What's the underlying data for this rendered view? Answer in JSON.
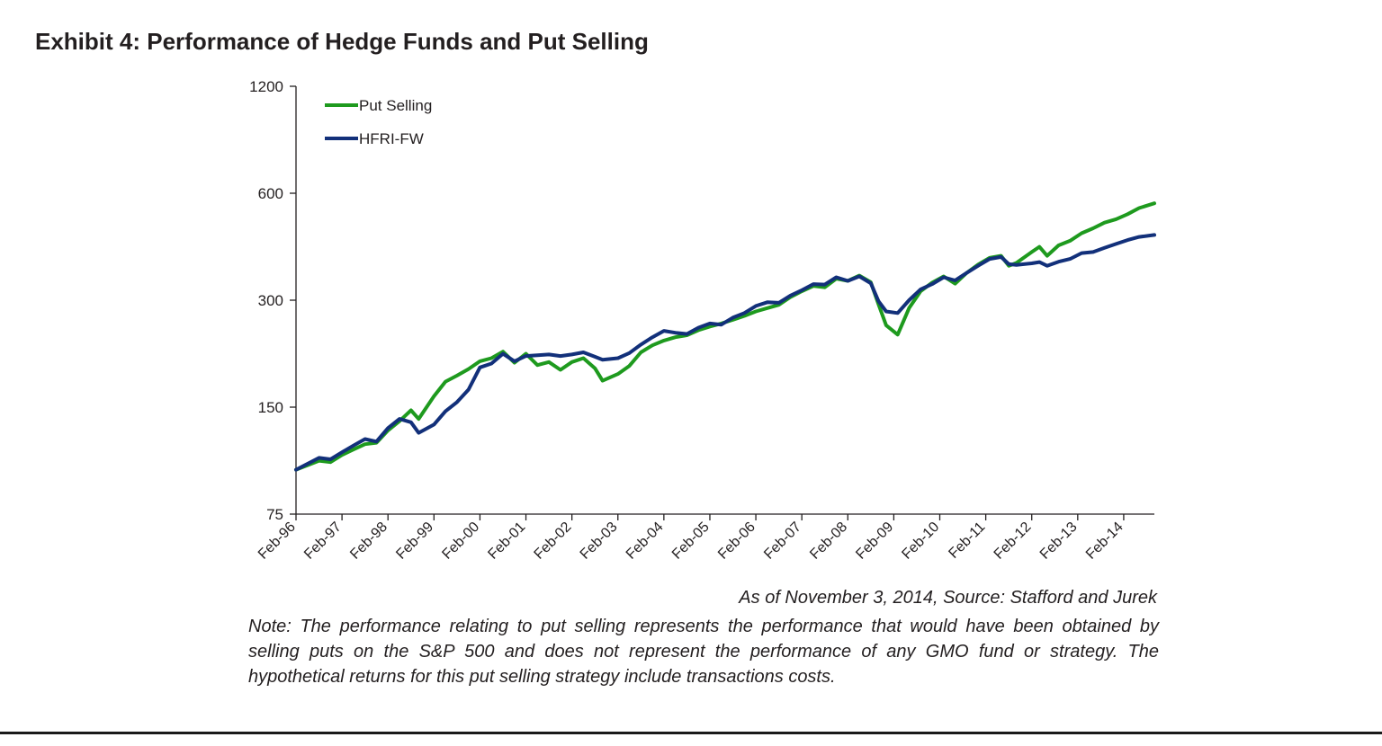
{
  "title": "Exhibit 4: Performance of Hedge Funds and Put Selling",
  "source": "As of November 3, 2014, Source: Stafford and Jurek",
  "note": "Note: The performance relating to put selling represents the performance that would have been obtained by selling puts on the S&P 500 and does not represent the performance of any GMO fund or strategy. The hypothetical returns for this put selling strategy include transactions costs.",
  "chart_data": {
    "type": "line",
    "title": "Exhibit 4: Performance of Hedge Funds and Put Selling",
    "xlabel": "",
    "ylabel": "",
    "y_scale": "log",
    "ylim": [
      75,
      1200
    ],
    "yticks": [
      75,
      150,
      300,
      600,
      1200
    ],
    "xlim": [
      "1996-02",
      "2014-10"
    ],
    "xticks": [
      "Feb-96",
      "Feb-97",
      "Feb-98",
      "Feb-99",
      "Feb-00",
      "Feb-01",
      "Feb-02",
      "Feb-03",
      "Feb-04",
      "Feb-05",
      "Feb-06",
      "Feb-07",
      "Feb-08",
      "Feb-09",
      "Feb-10",
      "Feb-11",
      "Feb-12",
      "Feb-13",
      "Feb-14"
    ],
    "grid": false,
    "legend_position": "top-left",
    "series": [
      {
        "name": "Put Selling",
        "color": "#1e9a1e",
        "points": [
          [
            "1996-02",
            100
          ],
          [
            "1996-08",
            106
          ],
          [
            "1996-11",
            105
          ],
          [
            "1997-02",
            110
          ],
          [
            "1997-05",
            114
          ],
          [
            "1997-08",
            118
          ],
          [
            "1997-11",
            119
          ],
          [
            "1998-02",
            129
          ],
          [
            "1998-05",
            137
          ],
          [
            "1998-08",
            147
          ],
          [
            "1998-10",
            139
          ],
          [
            "1999-02",
            161
          ],
          [
            "1999-05",
            177
          ],
          [
            "1999-08",
            184
          ],
          [
            "1999-11",
            192
          ],
          [
            "2000-02",
            202
          ],
          [
            "2000-05",
            206
          ],
          [
            "2000-08",
            215
          ],
          [
            "2000-11",
            200
          ],
          [
            "2001-02",
            212
          ],
          [
            "2001-05",
            197
          ],
          [
            "2001-08",
            201
          ],
          [
            "2001-11",
            191
          ],
          [
            "2002-02",
            201
          ],
          [
            "2002-05",
            206
          ],
          [
            "2002-08",
            193
          ],
          [
            "2002-10",
            178
          ],
          [
            "2003-02",
            186
          ],
          [
            "2003-05",
            196
          ],
          [
            "2003-08",
            214
          ],
          [
            "2003-11",
            224
          ],
          [
            "2004-02",
            231
          ],
          [
            "2004-05",
            236
          ],
          [
            "2004-08",
            239
          ],
          [
            "2004-11",
            247
          ],
          [
            "2005-02",
            253
          ],
          [
            "2005-05",
            258
          ],
          [
            "2005-08",
            264
          ],
          [
            "2005-11",
            271
          ],
          [
            "2006-02",
            279
          ],
          [
            "2006-05",
            285
          ],
          [
            "2006-08",
            291
          ],
          [
            "2006-11",
            306
          ],
          [
            "2007-02",
            318
          ],
          [
            "2007-05",
            329
          ],
          [
            "2007-08",
            326
          ],
          [
            "2007-11",
            345
          ],
          [
            "2008-02",
            340
          ],
          [
            "2008-05",
            352
          ],
          [
            "2008-08",
            337
          ],
          [
            "2008-10",
            292
          ],
          [
            "2008-12",
            255
          ],
          [
            "2009-03",
            240
          ],
          [
            "2009-06",
            285
          ],
          [
            "2009-09",
            318
          ],
          [
            "2009-12",
            336
          ],
          [
            "2010-03",
            350
          ],
          [
            "2010-06",
            334
          ],
          [
            "2010-09",
            358
          ],
          [
            "2010-12",
            378
          ],
          [
            "2011-03",
            395
          ],
          [
            "2011-06",
            400
          ],
          [
            "2011-08",
            375
          ],
          [
            "2011-10",
            382
          ],
          [
            "2012-02",
            410
          ],
          [
            "2012-04",
            424
          ],
          [
            "2012-06",
            400
          ],
          [
            "2012-09",
            428
          ],
          [
            "2012-12",
            441
          ],
          [
            "2013-03",
            463
          ],
          [
            "2013-06",
            478
          ],
          [
            "2013-09",
            496
          ],
          [
            "2013-12",
            507
          ],
          [
            "2014-03",
            524
          ],
          [
            "2014-06",
            545
          ],
          [
            "2014-10",
            562
          ]
        ]
      },
      {
        "name": "HFRI-FW",
        "color": "#12307a",
        "points": [
          [
            "1996-02",
            100
          ],
          [
            "1996-08",
            108
          ],
          [
            "1996-11",
            107
          ],
          [
            "1997-02",
            112
          ],
          [
            "1997-05",
            117
          ],
          [
            "1997-08",
            122
          ],
          [
            "1997-11",
            120
          ],
          [
            "1998-02",
            131
          ],
          [
            "1998-05",
            139
          ],
          [
            "1998-08",
            136
          ],
          [
            "1998-10",
            127
          ],
          [
            "1999-02",
            134
          ],
          [
            "1999-05",
            146
          ],
          [
            "1999-08",
            155
          ],
          [
            "1999-11",
            168
          ],
          [
            "2000-02",
            194
          ],
          [
            "2000-05",
            199
          ],
          [
            "2000-08",
            212
          ],
          [
            "2000-11",
            202
          ],
          [
            "2001-02",
            209
          ],
          [
            "2001-05",
            210
          ],
          [
            "2001-08",
            211
          ],
          [
            "2001-11",
            209
          ],
          [
            "2002-02",
            211
          ],
          [
            "2002-05",
            214
          ],
          [
            "2002-08",
            208
          ],
          [
            "2002-10",
            204
          ],
          [
            "2003-02",
            206
          ],
          [
            "2003-05",
            213
          ],
          [
            "2003-08",
            225
          ],
          [
            "2003-11",
            236
          ],
          [
            "2004-02",
            246
          ],
          [
            "2004-05",
            243
          ],
          [
            "2004-08",
            241
          ],
          [
            "2004-11",
            251
          ],
          [
            "2005-02",
            258
          ],
          [
            "2005-05",
            256
          ],
          [
            "2005-08",
            268
          ],
          [
            "2005-11",
            276
          ],
          [
            "2006-02",
            289
          ],
          [
            "2006-05",
            296
          ],
          [
            "2006-08",
            295
          ],
          [
            "2006-11",
            309
          ],
          [
            "2007-02",
            320
          ],
          [
            "2007-05",
            333
          ],
          [
            "2007-08",
            332
          ],
          [
            "2007-11",
            348
          ],
          [
            "2008-02",
            340
          ],
          [
            "2008-05",
            350
          ],
          [
            "2008-08",
            335
          ],
          [
            "2008-10",
            298
          ],
          [
            "2008-12",
            279
          ],
          [
            "2009-03",
            276
          ],
          [
            "2009-06",
            300
          ],
          [
            "2009-09",
            322
          ],
          [
            "2009-12",
            333
          ],
          [
            "2010-03",
            348
          ],
          [
            "2010-06",
            341
          ],
          [
            "2010-09",
            358
          ],
          [
            "2010-12",
            375
          ],
          [
            "2011-03",
            392
          ],
          [
            "2011-06",
            397
          ],
          [
            "2011-08",
            379
          ],
          [
            "2011-10",
            377
          ],
          [
            "2012-02",
            381
          ],
          [
            "2012-04",
            384
          ],
          [
            "2012-06",
            375
          ],
          [
            "2012-09",
            385
          ],
          [
            "2012-12",
            392
          ],
          [
            "2013-03",
            407
          ],
          [
            "2013-06",
            410
          ],
          [
            "2013-09",
            421
          ],
          [
            "2013-12",
            432
          ],
          [
            "2014-03",
            443
          ],
          [
            "2014-06",
            452
          ],
          [
            "2014-10",
            458
          ]
        ]
      }
    ]
  }
}
